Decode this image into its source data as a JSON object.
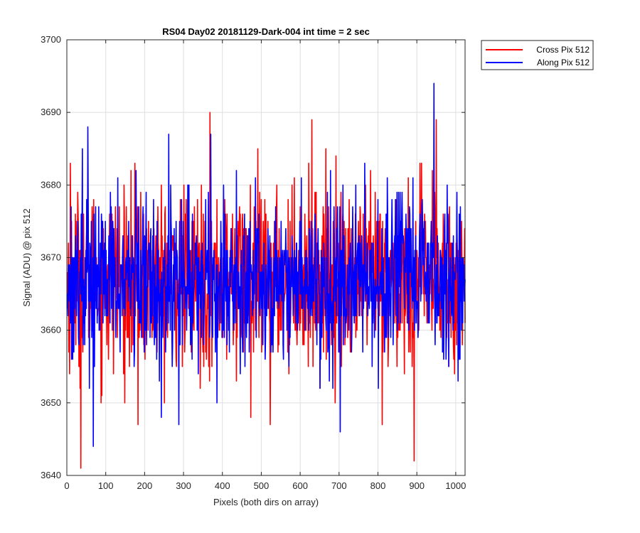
{
  "chart_data": {
    "type": "line",
    "title": "RS04 Day02 20181129-Dark-004 int time = 2 sec",
    "xlabel": "Pixels (both dirs on array)",
    "ylabel": "Signal (ADU) @ pix 512",
    "xlim": [
      0,
      1024
    ],
    "ylim": [
      3640,
      3700
    ],
    "xticks": [
      0,
      100,
      200,
      300,
      400,
      500,
      600,
      700,
      800,
      900,
      1000
    ],
    "yticks": [
      3640,
      3650,
      3660,
      3670,
      3680,
      3690,
      3700
    ],
    "grid": true,
    "legend_position": "outside-top-right",
    "series": [
      {
        "name": "Cross Pix 512",
        "color": "#ff0000",
        "x_start": 1,
        "x_step": 1,
        "count": 1024,
        "mean": 3667,
        "noise_sd": 6,
        "highlights": [
          {
            "x": 36,
            "y": 3641
          },
          {
            "x": 9,
            "y": 3683
          },
          {
            "x": 183,
            "y": 3647
          },
          {
            "x": 368,
            "y": 3690
          },
          {
            "x": 630,
            "y": 3689
          },
          {
            "x": 893,
            "y": 3642
          },
          {
            "x": 950,
            "y": 3689
          },
          {
            "x": 811,
            "y": 3647
          },
          {
            "x": 523,
            "y": 3647
          },
          {
            "x": 473,
            "y": 3648
          }
        ]
      },
      {
        "name": "Along Pix 512",
        "color": "#0000ff",
        "x_start": 1,
        "x_step": 1,
        "count": 1024,
        "mean": 3667,
        "noise_sd": 5.5,
        "highlights": [
          {
            "x": 944,
            "y": 3694
          },
          {
            "x": 54,
            "y": 3688
          },
          {
            "x": 68,
            "y": 3644
          },
          {
            "x": 703,
            "y": 3646
          },
          {
            "x": 288,
            "y": 3647
          },
          {
            "x": 243,
            "y": 3648
          },
          {
            "x": 262,
            "y": 3687
          },
          {
            "x": 370,
            "y": 3687
          },
          {
            "x": 40,
            "y": 3685
          }
        ]
      }
    ]
  }
}
